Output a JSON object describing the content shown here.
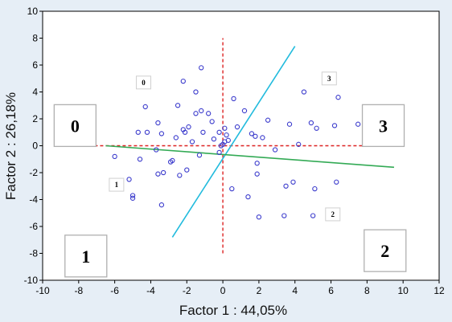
{
  "chart_data": {
    "type": "scatter",
    "xlabel": "Factor 1 : 44,05%",
    "ylabel": "Factor 2 : 26,18%",
    "xlim": [
      -10,
      12
    ],
    "ylim": [
      -10,
      10
    ],
    "x_ticks": [
      -10,
      -8,
      -6,
      -4,
      -2,
      0,
      2,
      4,
      6,
      8,
      10,
      12
    ],
    "y_ticks": [
      -10,
      -8,
      -6,
      -4,
      -2,
      0,
      2,
      4,
      6,
      8,
      10
    ],
    "grid": false,
    "marker": "open-circle",
    "marker_color": "#3a3acc",
    "points": [
      [
        -6.0,
        -0.8
      ],
      [
        -5.2,
        -2.5
      ],
      [
        -5.0,
        -3.7
      ],
      [
        -5.0,
        -3.9
      ],
      [
        -4.7,
        1.0
      ],
      [
        -4.6,
        -1.0
      ],
      [
        -4.3,
        2.9
      ],
      [
        -4.2,
        1.0
      ],
      [
        -3.7,
        -0.3
      ],
      [
        -3.6,
        1.7
      ],
      [
        -3.4,
        0.9
      ],
      [
        -3.6,
        -2.1
      ],
      [
        -3.4,
        -4.4
      ],
      [
        -3.3,
        -2.0
      ],
      [
        -2.9,
        -1.2
      ],
      [
        -2.8,
        -1.1
      ],
      [
        -2.6,
        0.6
      ],
      [
        -2.5,
        3.0
      ],
      [
        -2.4,
        -2.2
      ],
      [
        -2.2,
        1.2
      ],
      [
        -2.2,
        4.8
      ],
      [
        -2.1,
        1.0
      ],
      [
        -2.0,
        -1.8
      ],
      [
        -1.9,
        1.4
      ],
      [
        -1.7,
        0.3
      ],
      [
        -1.5,
        2.4
      ],
      [
        -1.5,
        4.0
      ],
      [
        -1.3,
        -0.7
      ],
      [
        -1.2,
        2.6
      ],
      [
        -1.2,
        5.8
      ],
      [
        -1.1,
        1.0
      ],
      [
        -0.8,
        2.4
      ],
      [
        -0.6,
        1.8
      ],
      [
        -0.5,
        0.5
      ],
      [
        -0.2,
        1.0
      ],
      [
        -0.2,
        -0.5
      ],
      [
        -0.1,
        0.0
      ],
      [
        0.0,
        0.1
      ],
      [
        0.1,
        0.3
      ],
      [
        0.1,
        1.3
      ],
      [
        0.2,
        0.8
      ],
      [
        0.3,
        0.4
      ],
      [
        0.5,
        -3.2
      ],
      [
        0.6,
        3.5
      ],
      [
        0.8,
        1.4
      ],
      [
        1.2,
        2.6
      ],
      [
        1.4,
        -3.8
      ],
      [
        1.6,
        0.9
      ],
      [
        1.8,
        0.7
      ],
      [
        1.9,
        -2.1
      ],
      [
        1.9,
        -1.3
      ],
      [
        2.0,
        -5.3
      ],
      [
        2.2,
        0.6
      ],
      [
        2.5,
        1.9
      ],
      [
        2.9,
        -0.3
      ],
      [
        3.4,
        -5.2
      ],
      [
        3.5,
        -3.0
      ],
      [
        3.7,
        1.6
      ],
      [
        3.9,
        -2.7
      ],
      [
        4.2,
        0.1
      ],
      [
        4.5,
        4.0
      ],
      [
        4.9,
        1.7
      ],
      [
        5.0,
        -5.2
      ],
      [
        5.1,
        -3.2
      ],
      [
        5.2,
        1.3
      ],
      [
        6.2,
        1.5
      ],
      [
        6.3,
        -2.7
      ],
      [
        6.4,
        3.6
      ],
      [
        7.5,
        1.6
      ]
    ],
    "reference_lines": [
      {
        "name": "vertical",
        "color": "#dd2222",
        "dash": true,
        "x": [
          0,
          0
        ],
        "y": [
          -8,
          8
        ]
      },
      {
        "name": "horizontal",
        "color": "#dd2222",
        "dash": true,
        "x": [
          -9,
          10
        ],
        "y": [
          0,
          0
        ]
      }
    ],
    "lines": [
      {
        "name": "cyan-line",
        "color": "#22bbdd",
        "x": [
          -2.8,
          4.0
        ],
        "y": [
          -6.8,
          7.4
        ]
      },
      {
        "name": "green-line",
        "color": "#33aa55",
        "x": [
          -6.5,
          9.5
        ],
        "y": [
          0.0,
          -1.6
        ]
      }
    ],
    "quadrant_labels": [
      {
        "text": "0",
        "x": -4.4,
        "y": 4.7
      },
      {
        "text": "1",
        "x": -5.9,
        "y": -2.9
      },
      {
        "text": "2",
        "x": 6.1,
        "y": -5.1
      },
      {
        "text": "3",
        "x": 5.9,
        "y": 5.0
      }
    ],
    "region_labels": [
      {
        "text": "0",
        "x": -8.2,
        "y": 1.5
      },
      {
        "text": "1",
        "x": -7.6,
        "y": -8.2
      },
      {
        "text": "2",
        "x": 9.0,
        "y": -7.8
      },
      {
        "text": "3",
        "x": 8.9,
        "y": 1.5
      }
    ]
  }
}
